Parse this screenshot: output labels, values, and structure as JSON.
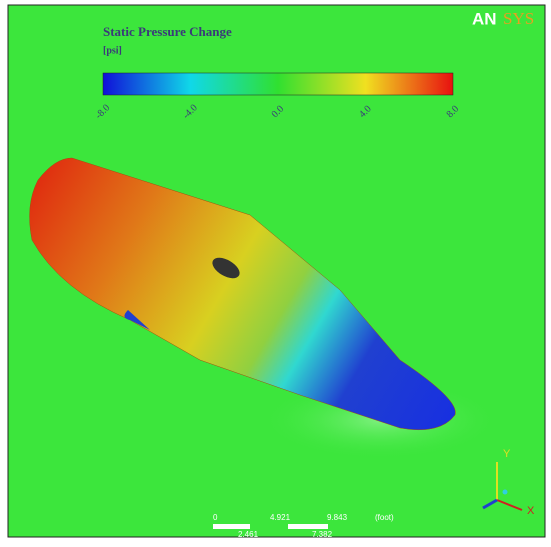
{
  "legend": {
    "title": "Static Pressure Change",
    "unit": "[psi]",
    "ticks": [
      "-8.0",
      "-4.0",
      "0.0",
      "4.0",
      "8.0"
    ]
  },
  "logo": {
    "left": "AN",
    "right": "SYS"
  },
  "scale_bar": {
    "top_labels": [
      "0",
      "4.921",
      "9.843"
    ],
    "unit": "(foot)",
    "bottom_labels": [
      "2.461",
      "7.382"
    ]
  },
  "triad": {
    "x": "X",
    "y": "Y"
  }
}
